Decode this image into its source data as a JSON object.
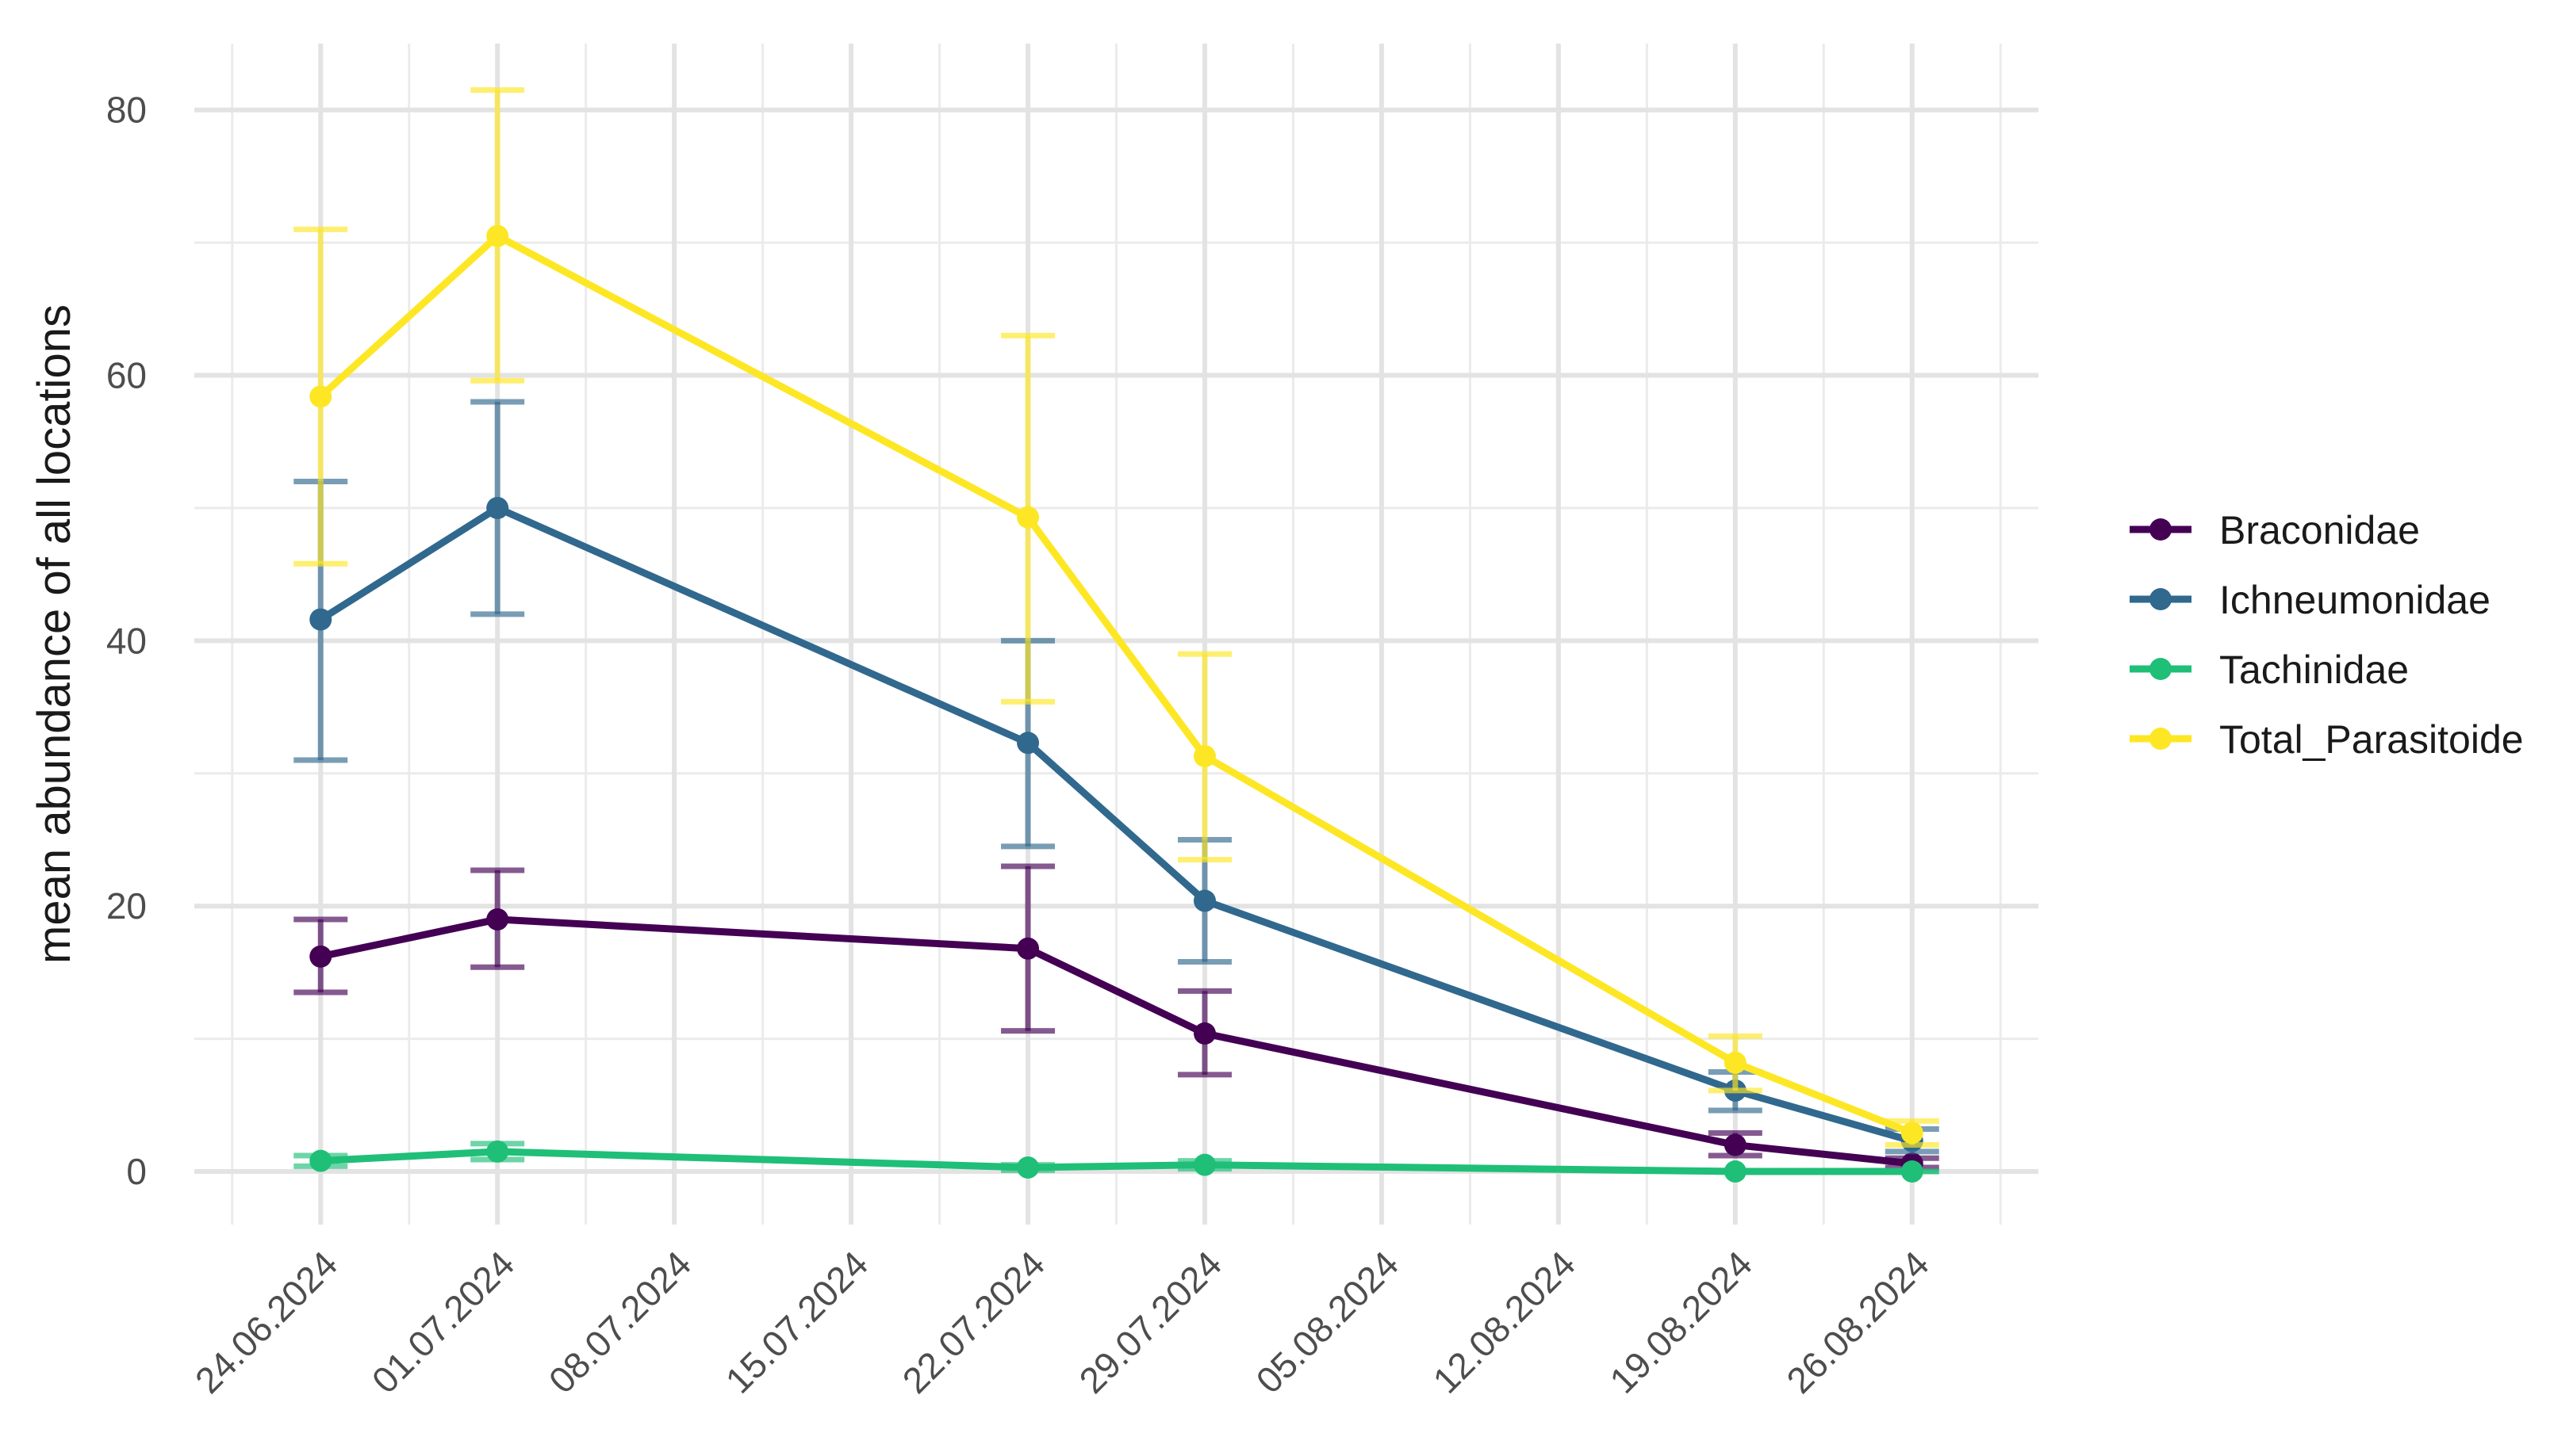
{
  "chart_data": {
    "type": "line",
    "title": "",
    "xlabel": "",
    "ylabel": "mean abundance of all locations",
    "grid": true,
    "legend_position": "right",
    "xlim": [
      "2024-06-19",
      "2024-08-31"
    ],
    "ylim": [
      -4,
      85
    ],
    "x_ticks": [
      "2024-06-24",
      "2024-07-01",
      "2024-07-08",
      "2024-07-15",
      "2024-07-22",
      "2024-07-29",
      "2024-08-05",
      "2024-08-12",
      "2024-08-19",
      "2024-08-26"
    ],
    "x_tick_labels": [
      "24.06.2024",
      "01.07.2024",
      "08.07.2024",
      "15.07.2024",
      "22.07.2024",
      "29.07.2024",
      "05.08.2024",
      "12.08.2024",
      "19.08.2024",
      "26.08.2024"
    ],
    "y_ticks": [
      0,
      20,
      40,
      60,
      80
    ],
    "y_tick_labels": [
      "0",
      "20",
      "40",
      "60",
      "80"
    ],
    "x": [
      "2024-06-24",
      "2024-07-01",
      "2024-07-22",
      "2024-07-29",
      "2024-08-19",
      "2024-08-26"
    ],
    "series": [
      {
        "name": "Braconidae",
        "color": "#440154",
        "values": [
          16.2,
          19.0,
          16.8,
          10.4,
          2.0,
          0.6
        ],
        "error_low": [
          13.5,
          15.4,
          10.6,
          7.3,
          1.2,
          0.3
        ],
        "error_high": [
          19.0,
          22.7,
          23.0,
          13.6,
          2.9,
          1.0
        ]
      },
      {
        "name": "Ichneumonidae",
        "color": "#31688e",
        "values": [
          41.6,
          50.0,
          32.3,
          20.4,
          6.1,
          2.3
        ],
        "error_low": [
          31.0,
          42.0,
          24.5,
          15.8,
          4.6,
          1.5
        ],
        "error_high": [
          52.0,
          58.0,
          40.0,
          25.0,
          7.5,
          3.2
        ]
      },
      {
        "name": "Tachinidae",
        "color": "#1fbf78",
        "values": [
          0.8,
          1.5,
          0.3,
          0.5,
          0.0,
          0.0
        ],
        "error_low": [
          0.4,
          0.9,
          0.1,
          0.2,
          0.0,
          0.0
        ],
        "error_high": [
          1.2,
          2.1,
          0.5,
          0.8,
          0.0,
          0.0
        ]
      },
      {
        "name": "Total_Parasitoide",
        "color": "#fde725",
        "values": [
          58.4,
          70.5,
          49.3,
          31.3,
          8.2,
          2.9
        ],
        "error_low": [
          45.8,
          59.6,
          35.4,
          23.5,
          6.1,
          2.0
        ],
        "error_high": [
          71.0,
          81.5,
          63.0,
          39.0,
          10.2,
          3.8
        ]
      }
    ]
  }
}
